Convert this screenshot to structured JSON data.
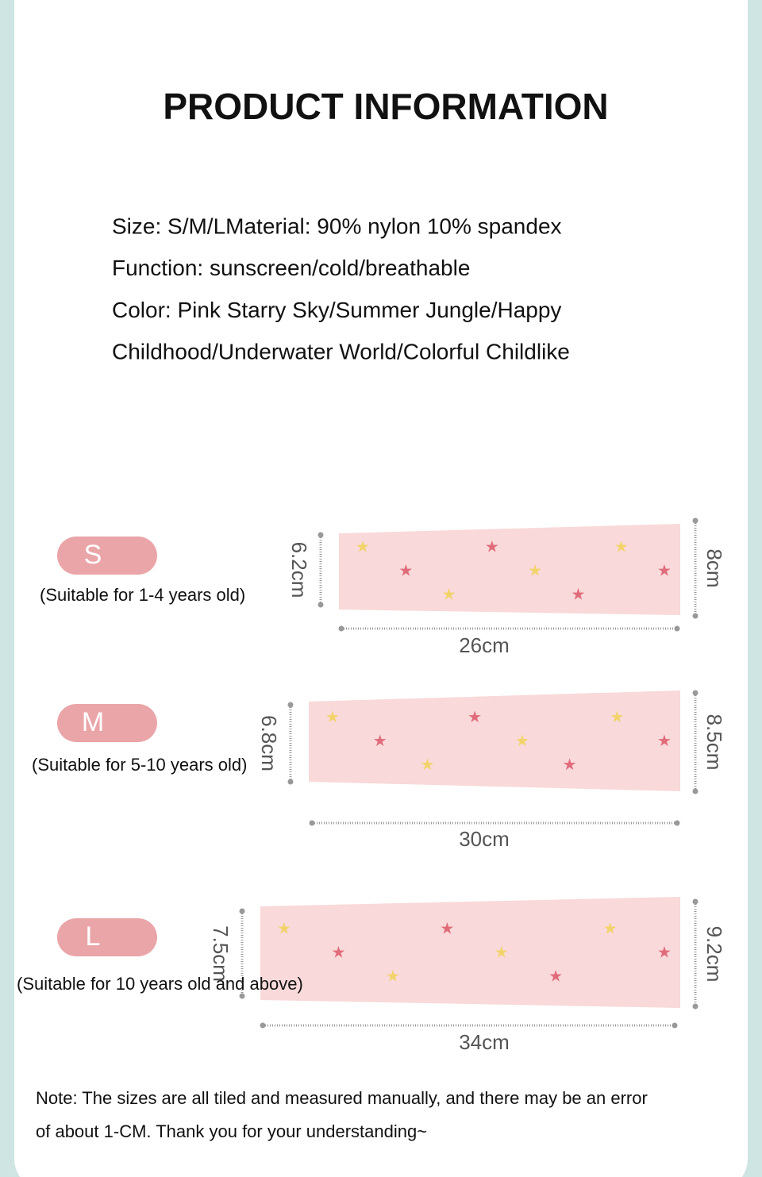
{
  "header": {
    "title": "PRODUCT INFORMATION"
  },
  "info": [
    "Size: S/M/LMaterial: 90% nylon 10% spandex",
    "Function: sunscreen/cold/breathable",
    "Color: Pink Starry Sky/Summer Jungle/Happy",
    "Childhood/Underwater World/Colorful Childlike"
  ],
  "sizes": [
    {
      "badge": "S",
      "suitable": "(Suitable for 1-4 years old)",
      "cuff": "6.2cm",
      "top": "8cm",
      "length": "26cm"
    },
    {
      "badge": "M",
      "suitable": "(Suitable for 5-10 years old)",
      "cuff": "6.8cm",
      "top": "8.5cm",
      "length": "30cm"
    },
    {
      "badge": "L",
      "suitable": "(Suitable for 10 years old and above)",
      "cuff": "7.5cm",
      "top": "9.2cm",
      "length": "34cm"
    }
  ],
  "note": [
    "Note: The sizes are all tiled and measured manually, and there may be an error",
    "of about 1-CM. Thank you for your understanding~"
  ]
}
